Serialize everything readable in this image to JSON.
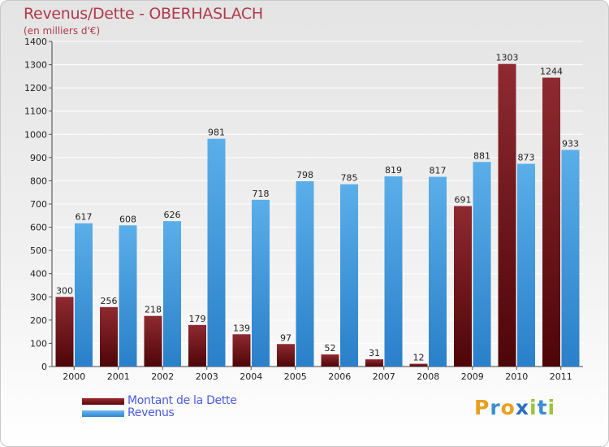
{
  "title": "Revenus/Dette - OBERHASLACH",
  "subtitle": "(en milliers d'€)",
  "colors": {
    "debt": "#7a1a1f",
    "revenue": "#4fa3e3",
    "title": "#b03a4c",
    "legend_text": "#4a5be0"
  },
  "chart_data": {
    "type": "bar",
    "categories": [
      "2000",
      "2001",
      "2002",
      "2003",
      "2004",
      "2005",
      "2006",
      "2007",
      "2008",
      "2009",
      "2010",
      "2011"
    ],
    "series": [
      {
        "name": "Montant de la Dette",
        "values": [
          300,
          256,
          218,
          179,
          139,
          97,
          52,
          31,
          12,
          691,
          1303,
          1244
        ]
      },
      {
        "name": "Revenus",
        "values": [
          617,
          608,
          626,
          981,
          718,
          798,
          785,
          819,
          817,
          881,
          873,
          933
        ]
      }
    ],
    "yticks": [
      0,
      100,
      200,
      300,
      400,
      500,
      600,
      700,
      800,
      900,
      1000,
      1100,
      1200,
      1300,
      1400
    ],
    "ylim": [
      0,
      1400
    ],
    "grid": true,
    "legend_position": "bottom-left"
  },
  "legend": [
    {
      "label": "Montant de la Dette"
    },
    {
      "label": "Revenus"
    }
  ],
  "logo": {
    "letters": [
      "P",
      "r",
      "o",
      "x",
      "i",
      "t",
      "i"
    ],
    "letter_colors": [
      "#e8a020",
      "#3a8fd0",
      "#e8a020",
      "#2a70c0",
      "#9bc43a",
      "#3a8fd0",
      "#9bc43a"
    ]
  }
}
